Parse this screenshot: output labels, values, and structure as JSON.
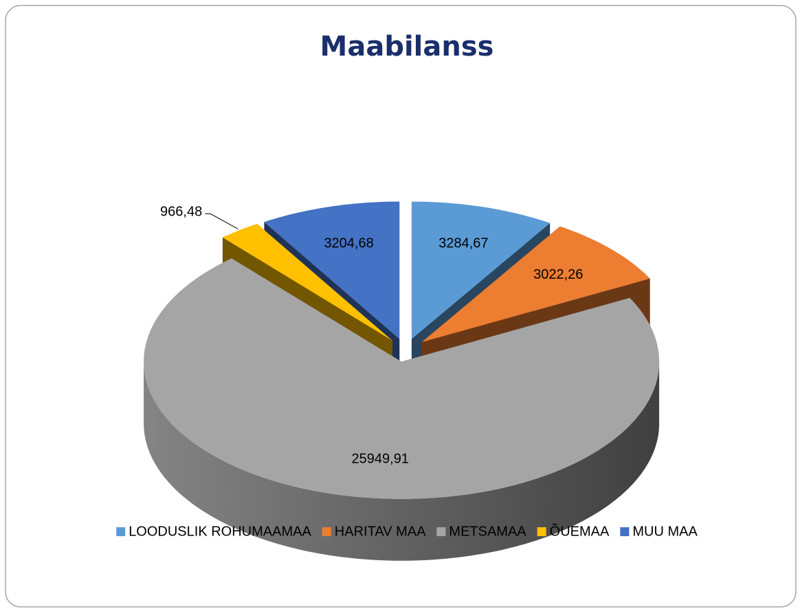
{
  "chart_data": {
    "type": "pie3d",
    "title": "Maabilanss",
    "categories": [
      "LOODUSLIK ROHUMAAMAA",
      "HARITAV MAA",
      "METSAMAA",
      "ÕUEMAA",
      "MUU MAA"
    ],
    "values": [
      3284.67,
      3022.26,
      25949.91,
      966.48,
      3204.68
    ],
    "value_labels": [
      "3284,67",
      "3022,26",
      "25949,91",
      "966,48",
      "3204,68"
    ],
    "colors": [
      "#5b9bd5",
      "#ed7d31",
      "#a5a5a5",
      "#ffc000",
      "#4472c4"
    ],
    "legend": "bottom"
  }
}
